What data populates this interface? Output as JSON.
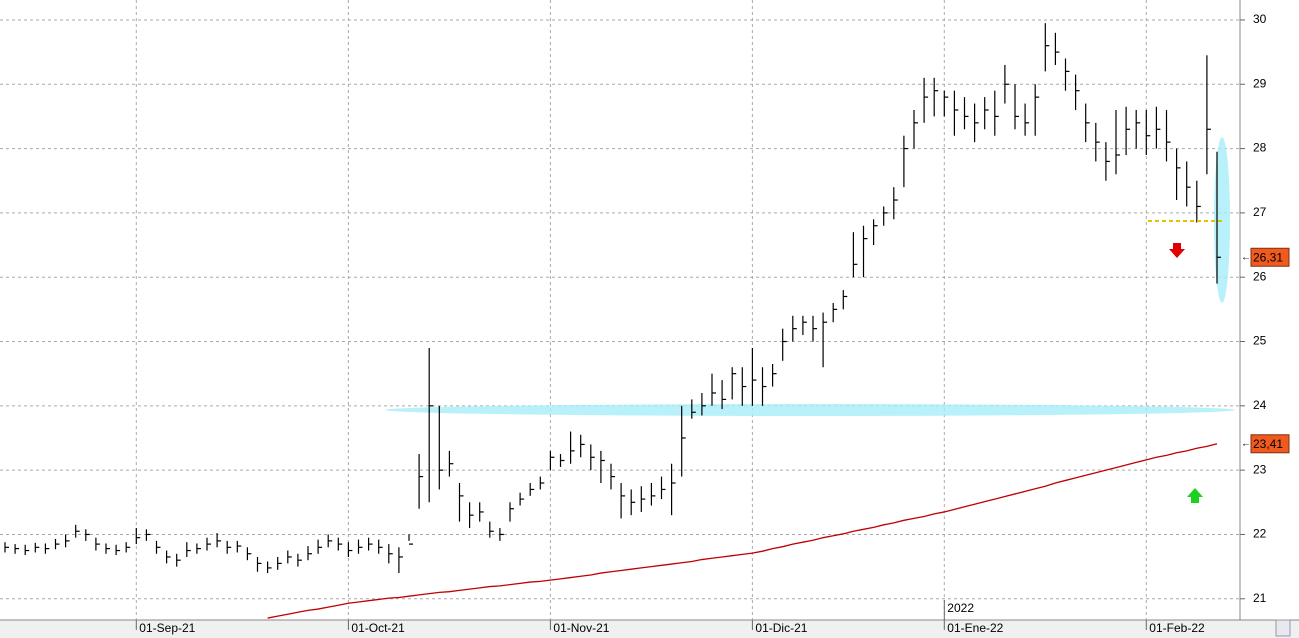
{
  "chart_data": {
    "type": "ohlc",
    "categories": [
      null,
      null,
      null,
      null,
      null,
      null,
      null,
      null,
      null,
      null,
      null,
      null,
      null,
      null,
      null,
      null,
      null,
      null,
      null,
      null,
      null,
      null,
      null,
      null,
      null,
      null,
      null,
      null,
      null,
      null,
      null,
      null,
      null,
      null,
      null,
      null,
      null,
      null,
      null,
      null,
      null,
      null,
      null,
      null,
      null,
      null,
      null,
      null,
      null,
      null,
      null,
      null,
      null,
      null,
      null,
      null,
      null,
      null,
      null,
      null,
      null,
      null,
      null,
      null,
      null,
      null,
      null,
      null,
      null,
      null,
      null,
      null,
      null,
      null,
      null,
      null,
      null,
      null,
      null,
      null,
      null,
      null,
      null,
      null,
      null,
      null,
      null,
      null,
      null,
      null,
      null,
      null,
      null,
      null,
      null,
      null,
      null,
      null,
      null,
      null,
      null,
      null,
      null,
      null,
      null,
      null,
      null,
      null,
      null,
      null,
      null,
      null,
      null,
      null,
      null,
      null,
      null,
      null,
      null,
      null,
      null
    ],
    "series": [
      {
        "color": "#000000",
        "last_label": "26,31",
        "high": [
          21.88,
          21.85,
          21.84,
          21.87,
          21.86,
          21.93,
          22.0,
          22.15,
          22.08,
          21.95,
          21.86,
          21.84,
          21.88,
          22.1,
          22.08,
          21.9,
          21.75,
          21.7,
          21.88,
          21.86,
          21.95,
          22.02,
          21.9,
          21.9,
          21.8,
          21.65,
          21.58,
          21.65,
          21.75,
          21.7,
          21.82,
          21.92,
          22.0,
          21.95,
          21.88,
          21.92,
          21.95,
          21.92,
          21.85,
          21.8,
          22.0,
          23.25,
          24.9,
          24.0,
          23.3,
          22.8,
          22.5,
          22.5,
          22.2,
          22.1,
          22.5,
          22.65,
          22.8,
          22.9,
          23.3,
          23.25,
          23.6,
          23.55,
          23.4,
          23.3,
          23.1,
          22.8,
          22.7,
          22.75,
          22.8,
          22.9,
          23.1,
          24.0,
          24.1,
          24.2,
          24.5,
          24.4,
          24.6,
          24.6,
          24.9,
          24.6,
          24.65,
          25.2,
          25.4,
          25.4,
          25.4,
          25.45,
          25.6,
          25.8,
          26.7,
          26.8,
          26.9,
          27.1,
          27.4,
          28.2,
          28.6,
          29.1,
          29.1,
          28.9,
          28.9,
          28.8,
          28.7,
          28.8,
          28.9,
          29.3,
          29.0,
          28.7,
          29.0,
          29.95,
          29.8,
          29.4,
          29.15,
          28.7,
          28.4,
          28.1,
          28.6,
          28.65,
          28.6,
          28.6,
          28.65,
          28.6,
          28.0,
          27.8,
          27.5,
          29.45,
          27.95
        ],
        "low": [
          21.72,
          21.7,
          21.68,
          21.72,
          21.7,
          21.77,
          21.8,
          21.95,
          21.9,
          21.75,
          21.7,
          21.68,
          21.72,
          21.85,
          21.9,
          21.7,
          21.55,
          21.5,
          21.65,
          21.7,
          21.75,
          21.8,
          21.7,
          21.72,
          21.6,
          21.42,
          21.4,
          21.45,
          21.55,
          21.5,
          21.6,
          21.7,
          21.8,
          21.75,
          21.65,
          21.7,
          21.75,
          21.7,
          21.55,
          21.4,
          21.9,
          22.4,
          22.5,
          22.7,
          22.9,
          22.2,
          22.1,
          22.2,
          21.95,
          21.9,
          22.2,
          22.45,
          22.6,
          22.7,
          23.0,
          23.05,
          23.1,
          23.2,
          23.0,
          22.8,
          22.7,
          22.25,
          22.3,
          22.35,
          22.45,
          22.55,
          22.3,
          22.9,
          23.8,
          23.85,
          24.0,
          23.95,
          24.1,
          24.0,
          24.0,
          24.0,
          24.3,
          24.7,
          25.0,
          25.1,
          25.0,
          24.6,
          25.3,
          25.5,
          26.0,
          26.0,
          26.5,
          26.8,
          26.9,
          27.4,
          28.0,
          28.4,
          28.5,
          28.5,
          28.2,
          28.3,
          28.1,
          28.3,
          28.2,
          28.7,
          28.3,
          28.2,
          28.2,
          29.2,
          29.3,
          28.9,
          28.6,
          28.1,
          27.8,
          27.5,
          27.6,
          27.9,
          28.0,
          27.9,
          28.0,
          27.8,
          27.2,
          27.1,
          26.85,
          27.6,
          25.9
        ],
        "close": [
          21.8,
          21.78,
          21.75,
          21.8,
          21.78,
          21.85,
          21.9,
          22.05,
          22.0,
          21.85,
          21.78,
          21.75,
          21.8,
          21.95,
          22.0,
          21.8,
          21.65,
          21.6,
          21.75,
          21.78,
          21.85,
          21.9,
          21.8,
          21.82,
          21.7,
          21.55,
          21.48,
          21.55,
          21.65,
          21.6,
          21.7,
          21.8,
          21.9,
          21.85,
          21.75,
          21.8,
          21.85,
          21.8,
          21.7,
          21.65,
          21.85,
          22.9,
          24.0,
          23.0,
          23.1,
          22.6,
          22.3,
          22.35,
          22.05,
          22.0,
          22.4,
          22.55,
          22.7,
          22.8,
          23.2,
          23.15,
          23.3,
          23.4,
          23.2,
          23.15,
          22.9,
          22.6,
          22.5,
          22.55,
          22.6,
          22.7,
          22.8,
          23.5,
          23.9,
          24.0,
          24.2,
          24.1,
          24.5,
          24.3,
          24.4,
          24.3,
          24.5,
          25.0,
          25.2,
          25.3,
          25.2,
          25.3,
          25.5,
          25.7,
          26.2,
          26.6,
          26.8,
          27.0,
          27.2,
          28.0,
          28.4,
          28.8,
          28.9,
          28.8,
          28.6,
          28.5,
          28.4,
          28.6,
          28.5,
          29.0,
          28.5,
          28.4,
          28.8,
          29.6,
          29.5,
          29.2,
          28.9,
          28.4,
          28.1,
          27.8,
          27.9,
          28.3,
          28.4,
          28.2,
          28.3,
          28.1,
          27.7,
          27.4,
          27.1,
          28.3,
          26.31
        ]
      },
      {
        "color": "#c00000",
        "last_label": "23,41",
        "values": [
          null,
          null,
          null,
          null,
          null,
          null,
          null,
          null,
          null,
          null,
          null,
          null,
          null,
          null,
          null,
          null,
          null,
          null,
          null,
          null,
          null,
          null,
          null,
          null,
          null,
          null,
          20.7,
          20.73,
          20.76,
          20.79,
          20.82,
          20.84,
          20.87,
          20.9,
          20.93,
          20.95,
          20.97,
          20.99,
          21.01,
          21.02,
          21.04,
          21.06,
          21.08,
          21.1,
          21.11,
          21.13,
          21.15,
          21.17,
          21.19,
          21.2,
          21.22,
          21.24,
          21.26,
          21.27,
          21.29,
          21.31,
          21.33,
          21.35,
          21.37,
          21.4,
          21.42,
          21.44,
          21.46,
          21.48,
          21.5,
          21.52,
          21.54,
          21.56,
          21.58,
          21.61,
          21.63,
          21.65,
          21.67,
          21.69,
          21.71,
          21.74,
          21.78,
          21.81,
          21.85,
          21.88,
          21.91,
          21.95,
          21.98,
          22.01,
          22.05,
          22.08,
          22.11,
          22.15,
          22.18,
          22.22,
          22.25,
          22.28,
          22.32,
          22.35,
          22.39,
          22.43,
          22.47,
          22.51,
          22.55,
          22.59,
          22.63,
          22.67,
          22.71,
          22.75,
          22.8,
          22.84,
          22.88,
          22.92,
          22.96,
          23.0,
          23.04,
          23.08,
          23.12,
          23.16,
          23.2,
          23.23,
          23.27,
          23.3,
          23.34,
          23.37,
          23.41
        ]
      }
    ],
    "ylim": [
      20.67,
      30.31
    ],
    "yticks": [
      21,
      22,
      23,
      24,
      25,
      26,
      27,
      28,
      29,
      30
    ],
    "xticks": [
      {
        "value": 13,
        "label": "01-Sep-21"
      },
      {
        "value": 34,
        "label": "01-Oct-21"
      },
      {
        "value": 54,
        "label": "01-Nov-21"
      },
      {
        "value": 74,
        "label": "01-Dic-21"
      },
      {
        "value": 93,
        "label": "01-Ene-22"
      },
      {
        "value": 113,
        "label": "01-Feb-22"
      }
    ],
    "year_label": {
      "value": 93,
      "label": "2022"
    },
    "grid": true
  }
}
